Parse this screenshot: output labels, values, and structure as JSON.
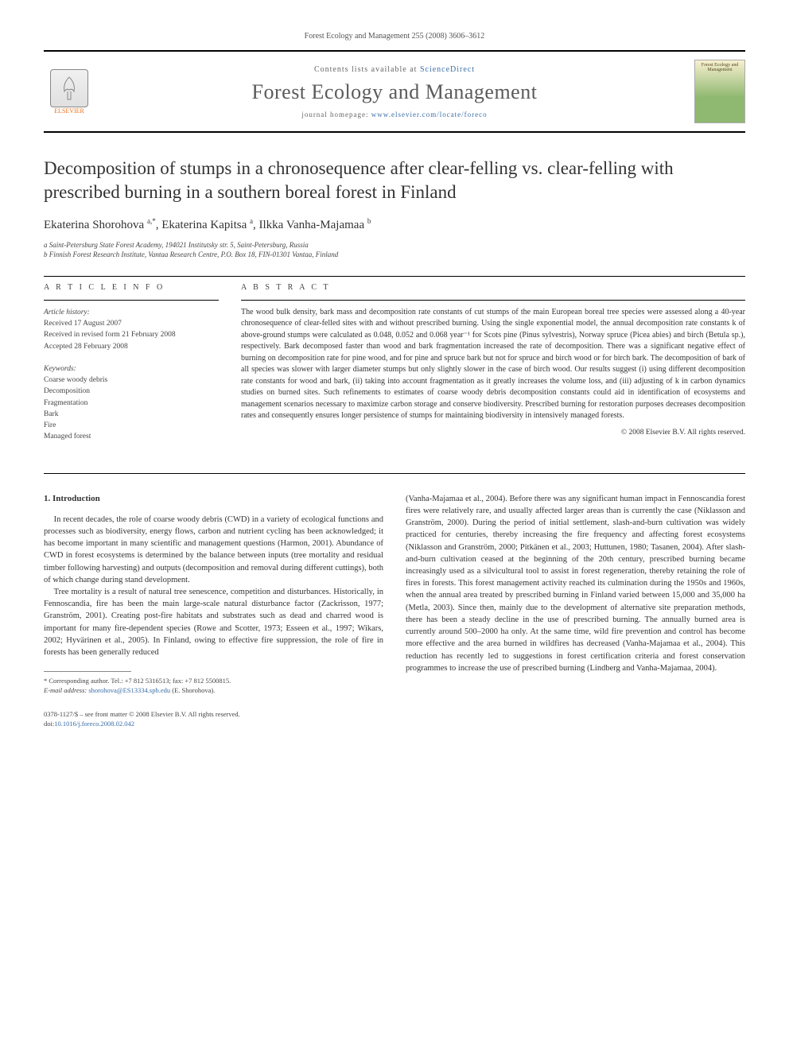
{
  "header": {
    "running_head": "Forest Ecology and Management 255 (2008) 3606–3612"
  },
  "banner": {
    "publisher_label": "ELSEVIER",
    "contents_prefix": "Contents lists available at ",
    "contents_link": "ScienceDirect",
    "journal_name": "Forest Ecology and Management",
    "homepage_prefix": "journal homepage: ",
    "homepage_url": "www.elsevier.com/locate/foreco",
    "cover_label": "Forest Ecology and Management"
  },
  "article": {
    "title": "Decomposition of stumps in a chronosequence after clear-felling vs. clear-felling with prescribed burning in a southern boreal forest in Finland",
    "authors_html": "Ekaterina Shorohova <sup>a,*</sup>, Ekaterina Kapitsa <sup>a</sup>, Ilkka Vanha-Majamaa <sup>b</sup>",
    "affiliations": [
      "a Saint-Petersburg State Forest Academy, 194021 Institutsky str. 5, Saint-Petersburg, Russia",
      "b Finnish Forest Research Institute, Vantaa Research Centre, P.O. Box 18, FIN-01301 Vantaa, Finland"
    ]
  },
  "info_headings": {
    "article_info": "A R T I C L E   I N F O",
    "abstract": "A B S T R A C T"
  },
  "history": {
    "label": "Article history:",
    "received": "Received 17 August 2007",
    "revised": "Received in revised form 21 February 2008",
    "accepted": "Accepted 28 February 2008"
  },
  "keywords": {
    "label": "Keywords:",
    "items": [
      "Coarse woody debris",
      "Decomposition",
      "Fragmentation",
      "Bark",
      "Fire",
      "Managed forest"
    ]
  },
  "abstract": {
    "text": "The wood bulk density, bark mass and decomposition rate constants of cut stumps of the main European boreal tree species were assessed along a 40-year chronosequence of clear-felled sites with and without prescribed burning. Using the single exponential model, the annual decomposition rate constants k of above-ground stumps were calculated as 0.048, 0.052 and 0.068 year⁻¹ for Scots pine (Pinus sylvestris), Norway spruce (Picea abies) and birch (Betula sp.), respectively. Bark decomposed faster than wood and bark fragmentation increased the rate of decomposition. There was a significant negative effect of burning on decomposition rate for pine wood, and for pine and spruce bark but not for spruce and birch wood or for birch bark. The decomposition of bark of all species was slower with larger diameter stumps but only slightly slower in the case of birch wood. Our results suggest (i) using different decomposition rate constants for wood and bark, (ii) taking into account fragmentation as it greatly increases the volume loss, and (iii) adjusting of k in carbon dynamics studies on burned sites. Such refinements to estimates of coarse woody debris decomposition constants could aid in identification of ecosystems and management scenarios necessary to maximize carbon storage and conserve biodiversity. Prescribed burning for restoration purposes decreases decomposition rates and consequently ensures longer persistence of stumps for maintaining biodiversity in intensively managed forests.",
    "copyright": "© 2008 Elsevier B.V. All rights reserved."
  },
  "section1": {
    "heading": "1. Introduction",
    "p1": "In recent decades, the role of coarse woody debris (CWD) in a variety of ecological functions and processes such as biodiversity, energy flows, carbon and nutrient cycling has been acknowledged; it has become important in many scientific and management questions (Harmon, 2001). Abundance of CWD in forest ecosystems is determined by the balance between inputs (tree mortality and residual timber following harvesting) and outputs (decomposition and removal during different cuttings), both of which change during stand development.",
    "p2": "Tree mortality is a result of natural tree senescence, competition and disturbances. Historically, in Fennoscandia, fire has been the main large-scale natural disturbance factor (Zackrisson, 1977; Granström, 2001). Creating post-fire habitats and substrates such as dead and charred wood is important for many fire-dependent species (Rowe and Scotter, 1973; Esseen et al., 1997; Wikars, 2002; Hyvärinen et al., 2005). In Finland, owing to effective fire suppression, the role of fire in forests has been generally reduced",
    "p3": "(Vanha-Majamaa et al., 2004). Before there was any significant human impact in Fennoscandia forest fires were relatively rare, and usually affected larger areas than is currently the case (Niklasson and Granström, 2000). During the period of initial settlement, slash-and-burn cultivation was widely practiced for centuries, thereby increasing the fire frequency and affecting forest ecosystems (Niklasson and Granström, 2000; Pitkänen et al., 2003; Huttunen, 1980; Tasanen, 2004). After slash-and-burn cultivation ceased at the beginning of the 20th century, prescribed burning became increasingly used as a silvicultural tool to assist in forest regeneration, thereby retaining the role of fires in forests. This forest management activity reached its culmination during the 1950s and 1960s, when the annual area treated by prescribed burning in Finland varied between 15,000 and 35,000 ha (Metla, 2003). Since then, mainly due to the development of alternative site preparation methods, there has been a steady decline in the use of prescribed burning. The annually burned area is currently around 500–2000 ha only. At the same time, wild fire prevention and control has become more effective and the area burned in wildfires has decreased (Vanha-Majamaa et al., 2004). This reduction has recently led to suggestions in forest certification criteria and forest conservation programmes to increase the use of prescribed burning (Lindberg and Vanha-Majamaa, 2004)."
  },
  "footnote": {
    "corresponding": "* Corresponding author. Tel.: +7 812 5316513; fax: +7 812 5500815.",
    "email_label": "E-mail address: ",
    "email": "shorohova@ES13334.spb.edu",
    "email_suffix": " (E. Shorohova)."
  },
  "footer": {
    "line1": "0378-1127/$ – see front matter © 2008 Elsevier B.V. All rights reserved.",
    "doi_label": "doi:",
    "doi": "10.1016/j.foreco.2008.02.042"
  },
  "colors": {
    "link": "#3a6ea8",
    "text": "#333333",
    "rule": "#000000",
    "elsevier": "#e9711c"
  }
}
